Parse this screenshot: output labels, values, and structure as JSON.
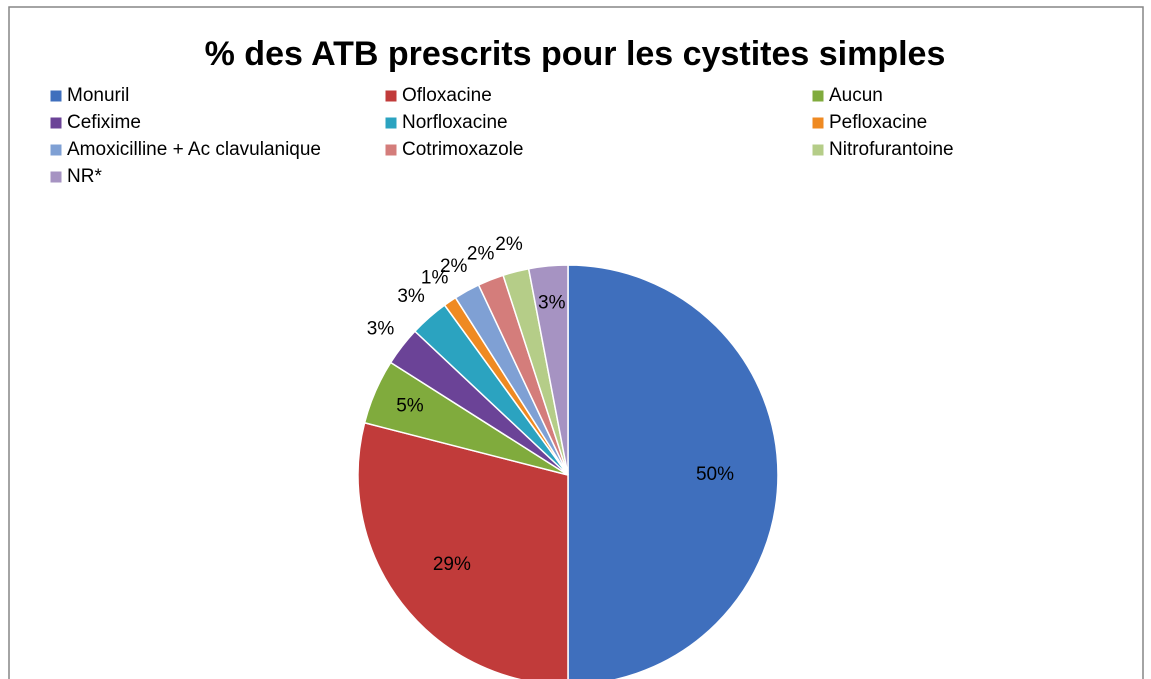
{
  "chart_data": {
    "type": "pie",
    "title": "% des ATB prescrits pour les cystites simples",
    "categories": [
      "Monuril",
      "Ofloxacine",
      "Aucun",
      "Cefixime",
      "Norfloxacine",
      "Pefloxacine",
      "Amoxicilline + Ac clavulanique",
      "Cotrimoxazole",
      "Nitrofurantoine",
      "NR*"
    ],
    "values": [
      50,
      29,
      5,
      3,
      3,
      1,
      2,
      2,
      2,
      3
    ],
    "value_labels": [
      "50%",
      "29%",
      "5%",
      "3%",
      "3%",
      "1%",
      "2%",
      "2%",
      "2%",
      "3%"
    ],
    "colors": [
      "#3f6fbd",
      "#c13b3a",
      "#80ab3d",
      "#6b4397",
      "#2ba3c0",
      "#ef8a22",
      "#7fa0d4",
      "#d47d7b",
      "#b5cd88",
      "#a693c2"
    ],
    "legend": "top"
  }
}
